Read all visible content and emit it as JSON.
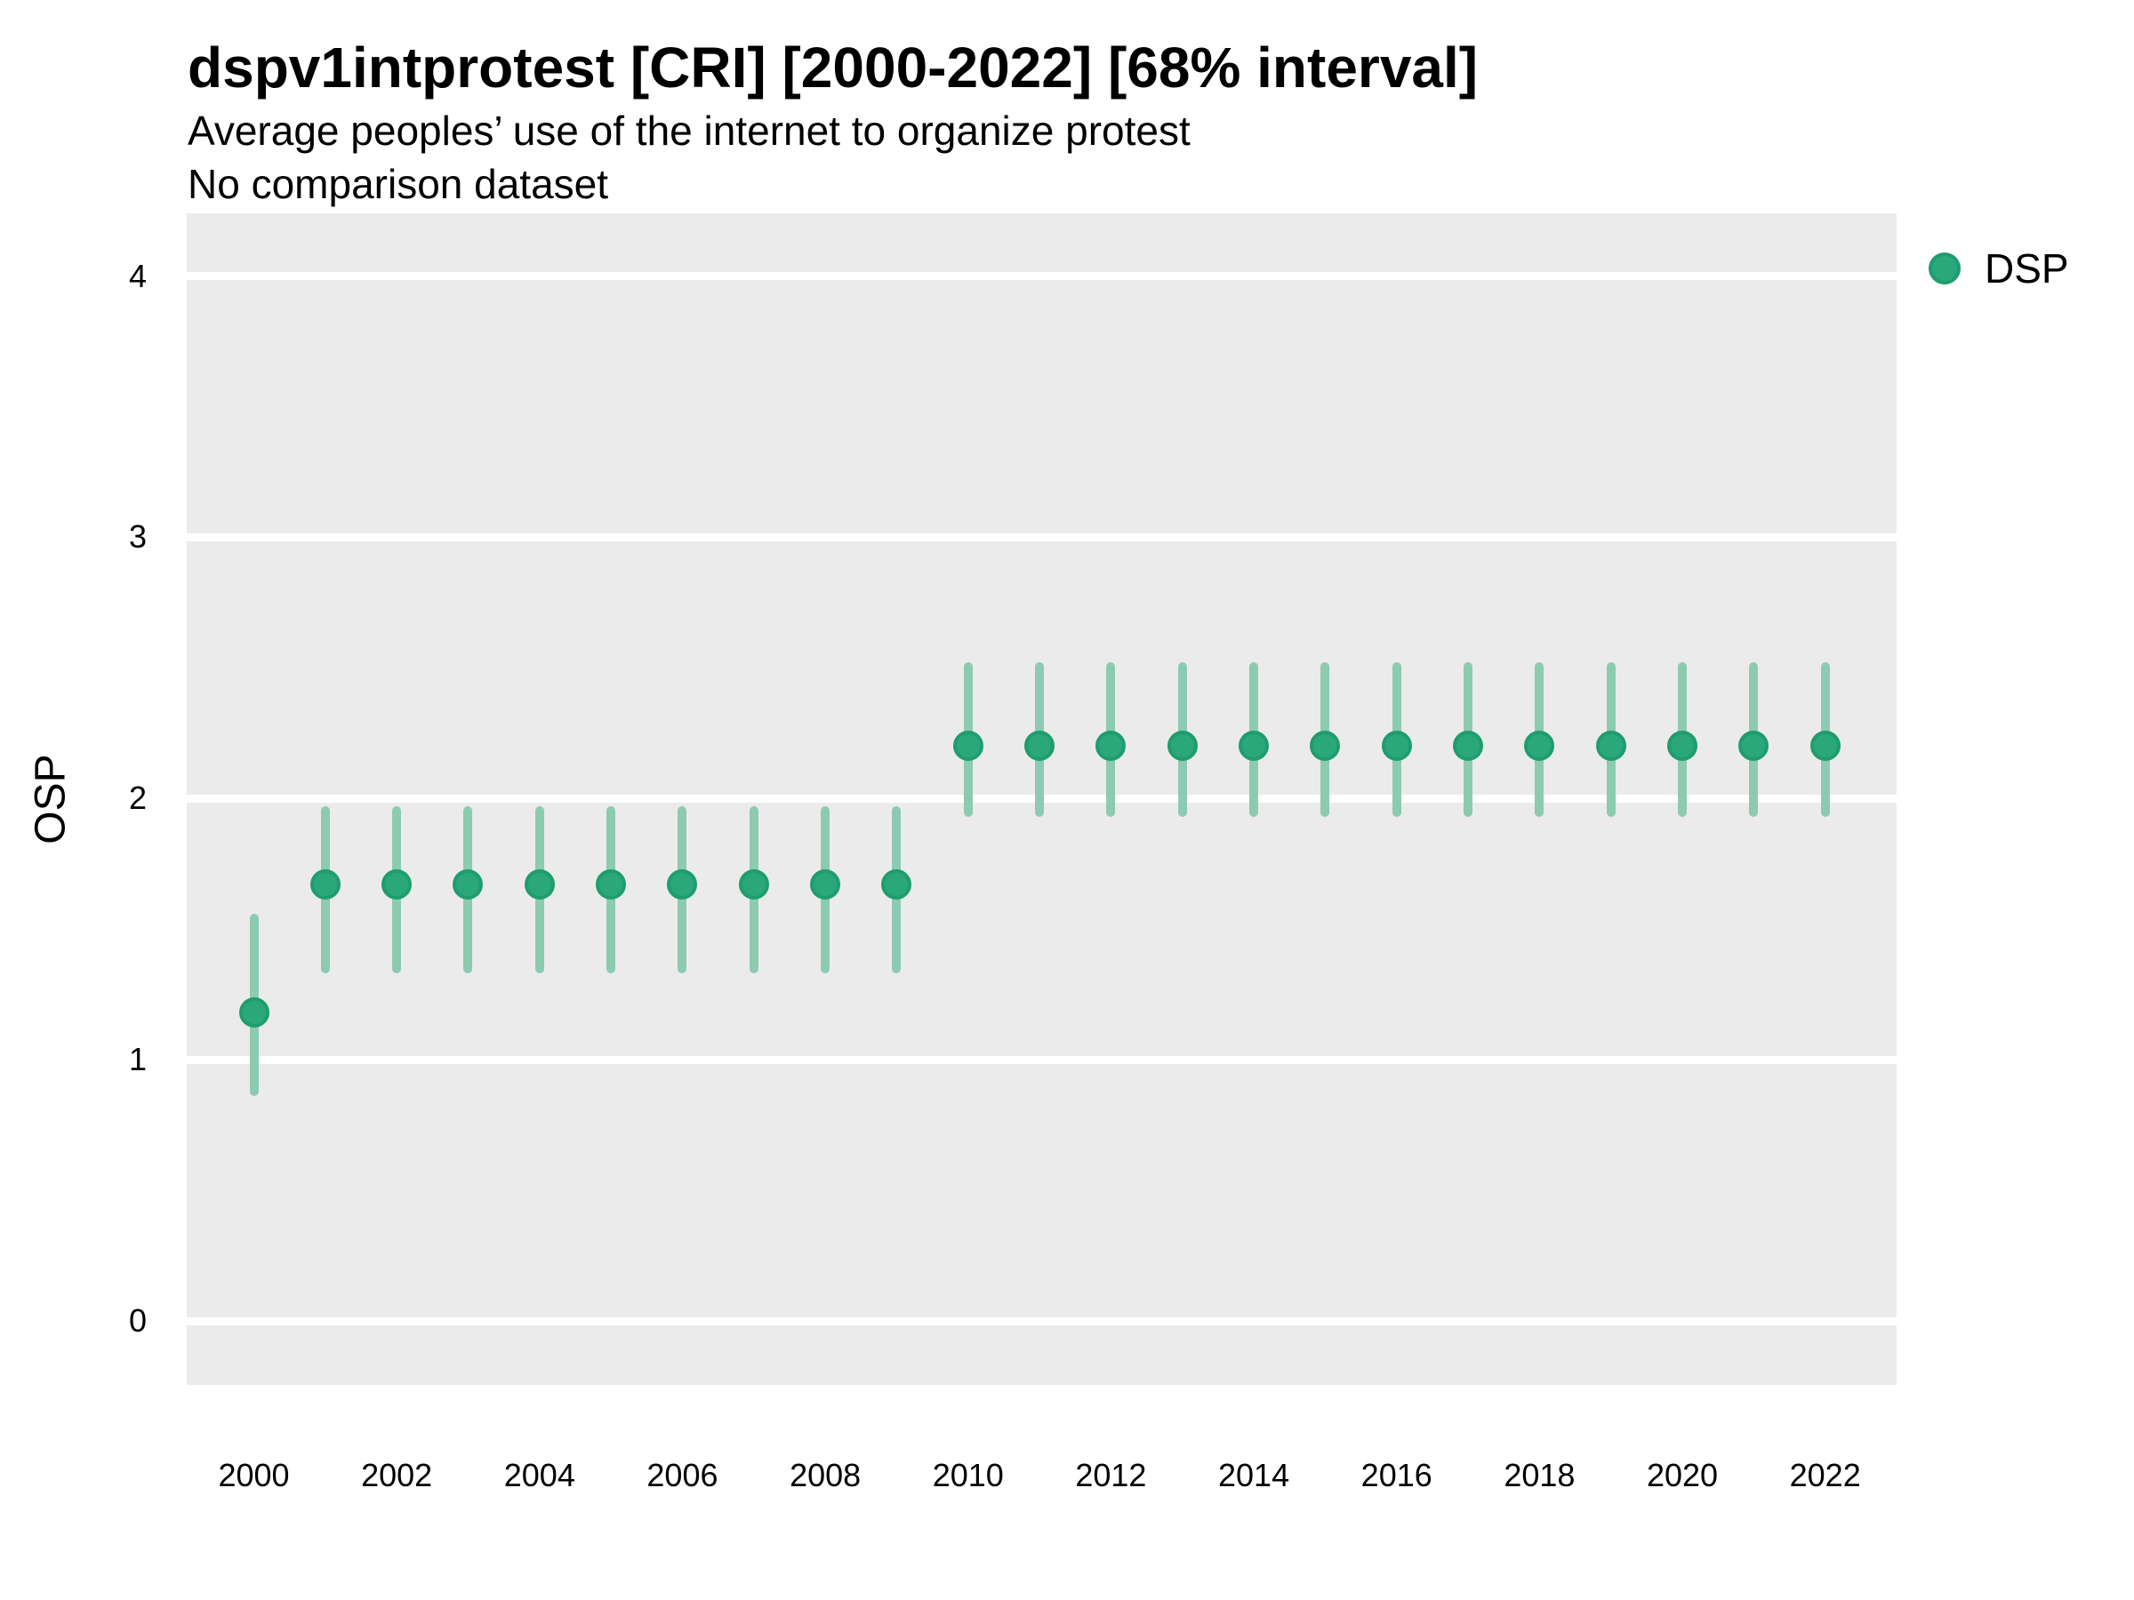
{
  "header": {
    "title": "dspv1intprotest [CRI] [2000-2022] [68% interval]",
    "subtitle": "Average peoples’ use of the internet to organize protest",
    "note": "No comparison dataset"
  },
  "axes": {
    "y_label": "OSP",
    "y_ticks": [
      0,
      1,
      2,
      3,
      4
    ],
    "x_ticks": [
      2000,
      2002,
      2004,
      2006,
      2008,
      2010,
      2012,
      2014,
      2016,
      2018,
      2020,
      2022
    ]
  },
  "legend": {
    "items": [
      {
        "label": "DSP",
        "color": "#2BA87B",
        "ring_color": "#1E9D6E"
      }
    ]
  },
  "colors": {
    "panel_background": "#EBEBEB",
    "gridline": "#FFFFFF",
    "point_fill": "#2BA87B",
    "point_ring": "#1E9D6E",
    "interval_bar": "#8CCBB1",
    "text": "#000000"
  },
  "chart_data": {
    "type": "scatter",
    "subtype": "pointrange",
    "title": "dspv1intprotest [CRI] [2000-2022] [68% interval]",
    "subtitle": "Average peoples’ use of the internet to organize protest",
    "annotation": "No comparison dataset",
    "interval_level": "68%",
    "xlabel": "",
    "ylabel": "OSP",
    "xlim": [
      1999.06,
      2023.0
    ],
    "ylim": [
      -0.245,
      4.24
    ],
    "x_tick_labels": [
      2000,
      2002,
      2004,
      2006,
      2008,
      2010,
      2012,
      2014,
      2016,
      2018,
      2020,
      2022
    ],
    "y_tick_labels": [
      0,
      1,
      2,
      3,
      4
    ],
    "grid": "horizontal major gridlines only, white on gray panel",
    "legend_position": "right",
    "x": [
      2000,
      2001,
      2002,
      2003,
      2004,
      2005,
      2006,
      2007,
      2008,
      2009,
      2010,
      2011,
      2012,
      2013,
      2014,
      2015,
      2016,
      2017,
      2018,
      2019,
      2020,
      2021,
      2022
    ],
    "series": [
      {
        "name": "DSP",
        "estimate": [
          1.18,
          1.67,
          1.67,
          1.67,
          1.67,
          1.67,
          1.67,
          1.67,
          1.67,
          1.67,
          2.2,
          2.2,
          2.2,
          2.2,
          2.2,
          2.2,
          2.2,
          2.2,
          2.2,
          2.2,
          2.2,
          2.2,
          2.2
        ],
        "lower": [
          0.86,
          1.33,
          1.33,
          1.33,
          1.33,
          1.33,
          1.33,
          1.33,
          1.33,
          1.33,
          1.93,
          1.93,
          1.93,
          1.93,
          1.93,
          1.93,
          1.93,
          1.93,
          1.93,
          1.93,
          1.93,
          1.93,
          1.93
        ],
        "upper": [
          1.56,
          1.97,
          1.97,
          1.97,
          1.97,
          1.97,
          1.97,
          1.97,
          1.97,
          1.97,
          2.52,
          2.52,
          2.52,
          2.52,
          2.52,
          2.52,
          2.52,
          2.52,
          2.52,
          2.52,
          2.52,
          2.52,
          2.52
        ]
      }
    ]
  }
}
